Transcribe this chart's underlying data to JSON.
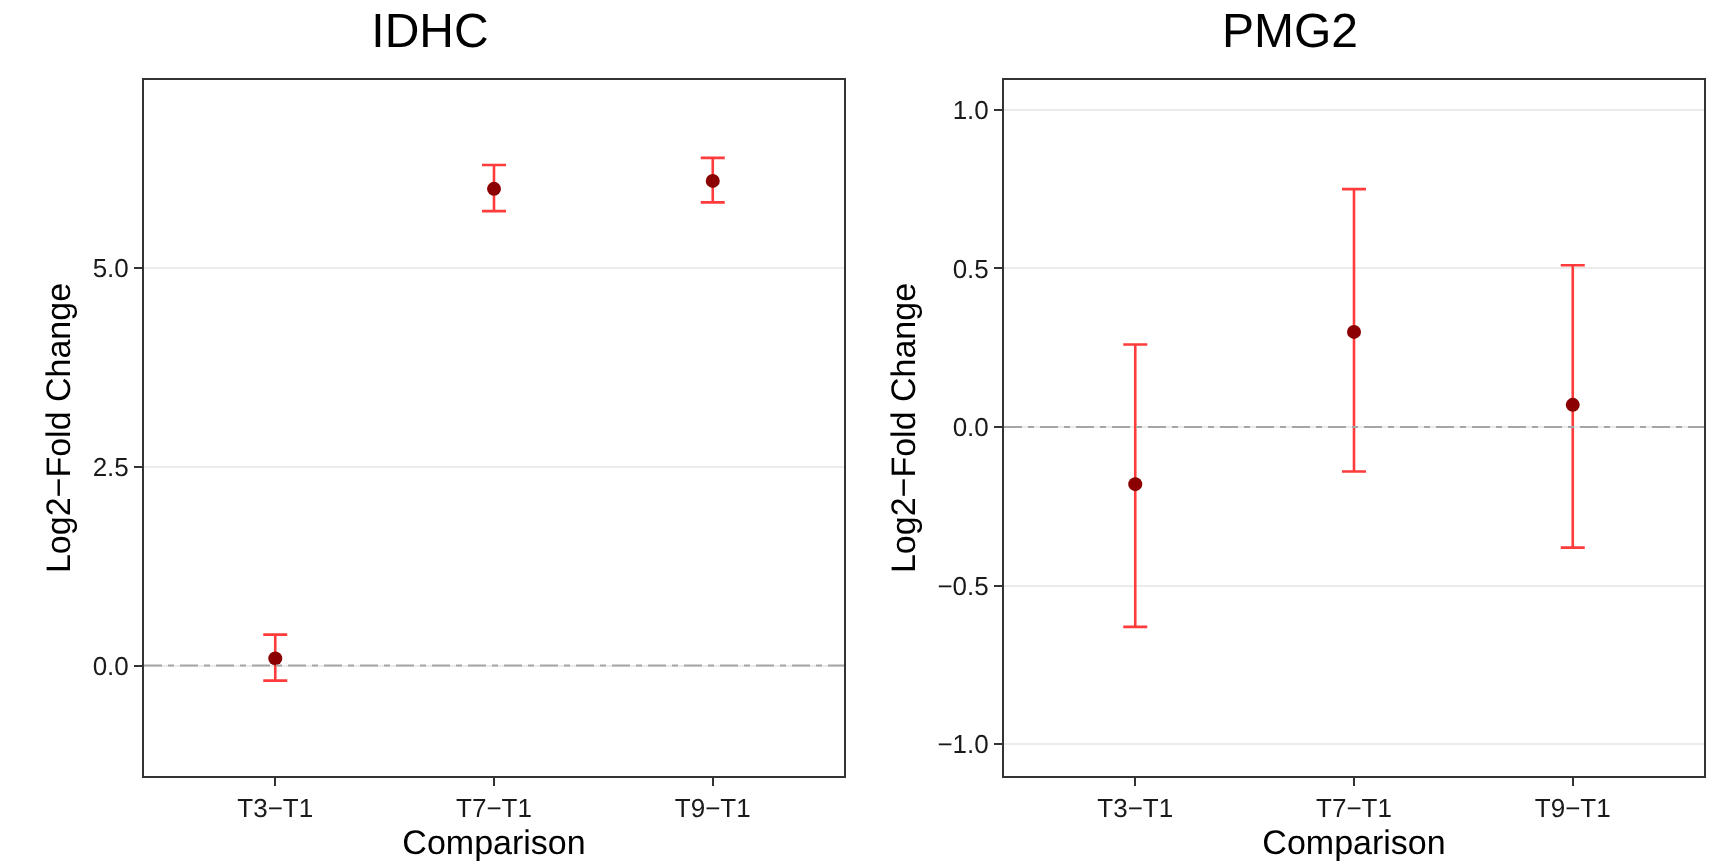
{
  "chart_data": [
    {
      "type": "scatter",
      "title": "IDHC",
      "xlabel": "Comparison",
      "ylabel": "Log2−Fold Change",
      "categories": [
        "T3−T1",
        "T7−T1",
        "T9−T1"
      ],
      "series": [
        {
          "color": "#8b0000",
          "values": [
            0.09,
            6.0,
            6.1
          ],
          "errors": [
            [
              -0.19,
              0.39
            ],
            [
              5.72,
              6.3
            ],
            [
              5.83,
              6.39
            ]
          ]
        }
      ],
      "ylim": [
        -1.39,
        7.37
      ],
      "yticks": [
        {
          "value": 0,
          "label": "0.0"
        },
        2.5,
        {
          "value": 5,
          "label": "5.0"
        }
      ],
      "grid": "y",
      "marker": "circle",
      "ref_lines": [
        {
          "axis": "y",
          "value": 0,
          "color": "#a6a6a6",
          "line_style": "dashdot"
        }
      ]
    },
    {
      "type": "scatter",
      "title": "PMG2",
      "xlabel": "Comparison",
      "ylabel": "Log2−Fold Change",
      "categories": [
        "T3−T1",
        "T7−T1",
        "T9−T1"
      ],
      "series": [
        {
          "color": "#8b0000",
          "values": [
            -0.18,
            0.3,
            0.07
          ],
          "errors": [
            [
              -0.63,
              0.26
            ],
            [
              -0.14,
              0.75
            ],
            [
              -0.38,
              0.51
            ]
          ]
        }
      ],
      "ylim": [
        -1.1,
        1.094
      ],
      "yticks": [
        {
          "value": -1,
          "label": "−1.0"
        },
        {
          "value": -0.5,
          "label": "−0.5"
        },
        {
          "value": 0,
          "label": "0.0"
        },
        0.5,
        {
          "value": 1,
          "label": "1.0"
        }
      ],
      "grid": "y",
      "marker": "circle",
      "ref_lines": [
        {
          "axis": "y",
          "value": 0,
          "color": "#a6a6a6",
          "line_style": "dashdot"
        }
      ]
    }
  ]
}
